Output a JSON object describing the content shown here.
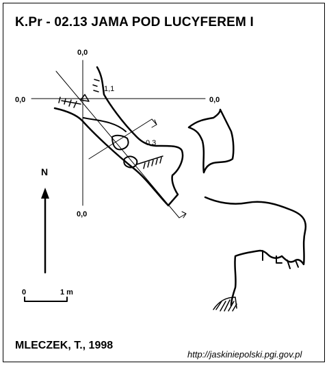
{
  "title": "K.Pr - 02.13  JAMA POD LUCYFEREM I",
  "author": "MLECZEK, T., 1998",
  "url": "http://jaskiniepolski.pgi.gov.pl",
  "north_label": "N",
  "scale": {
    "zero": "0",
    "length": "1 m"
  },
  "elevations": {
    "top": "0,0",
    "left": "0,0",
    "right": "0,0",
    "bottom": "0,0",
    "entrance": "1,1",
    "floor": "0,3"
  }
}
